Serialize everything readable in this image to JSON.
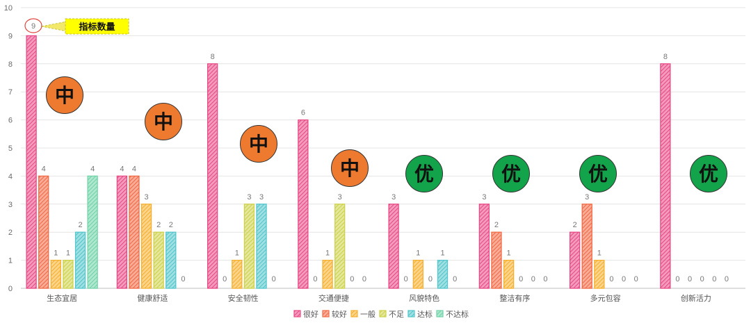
{
  "chart_data": {
    "type": "bar",
    "categories": [
      "生态宜居",
      "健康舒适",
      "安全韧性",
      "交通便捷",
      "风貌特色",
      "整洁有序",
      "多元包容",
      "创新活力"
    ],
    "series": [
      {
        "name": "很好",
        "color": "#e84a86",
        "values": [
          9,
          4,
          8,
          6,
          3,
          3,
          2,
          8
        ]
      },
      {
        "name": "较好",
        "color": "#f26a45",
        "values": [
          4,
          4,
          0,
          0,
          0,
          2,
          3,
          0
        ]
      },
      {
        "name": "一般",
        "color": "#f7b02e",
        "values": [
          1,
          3,
          1,
          1,
          1,
          1,
          1,
          0
        ]
      },
      {
        "name": "不足",
        "color": "#cdd24a",
        "values": [
          1,
          2,
          3,
          3,
          0,
          0,
          0,
          0
        ]
      },
      {
        "name": "达标",
        "color": "#52c6cc",
        "values": [
          2,
          2,
          3,
          0,
          1,
          0,
          0,
          0
        ]
      },
      {
        "name": "不达标",
        "color": "#6fd3a8",
        "values": [
          4,
          0,
          0,
          0,
          0,
          0,
          0,
          0
        ]
      }
    ],
    "ylim": [
      0,
      10
    ],
    "yticks": [
      0,
      1,
      2,
      3,
      4,
      5,
      6,
      7,
      8,
      9,
      10
    ],
    "grid": true,
    "legend_position": "bottom-center",
    "ratings": [
      {
        "category": "生态宜居",
        "label": "中",
        "color": "#ee7a30"
      },
      {
        "category": "健康舒适",
        "label": "中",
        "color": "#ee7a30"
      },
      {
        "category": "安全韧性",
        "label": "中",
        "color": "#ee7a30"
      },
      {
        "category": "交通便捷",
        "label": "中",
        "color": "#ee7a30"
      },
      {
        "category": "风貌特色",
        "label": "优",
        "color": "#13a34a"
      },
      {
        "category": "整洁有序",
        "label": "优",
        "color": "#13a34a"
      },
      {
        "category": "多元包容",
        "label": "优",
        "color": "#13a34a"
      },
      {
        "category": "创新活力",
        "label": "优",
        "color": "#13a34a"
      }
    ],
    "annotation": {
      "text": "指标数量",
      "target_value": 9,
      "fill": "#ffff00"
    }
  }
}
